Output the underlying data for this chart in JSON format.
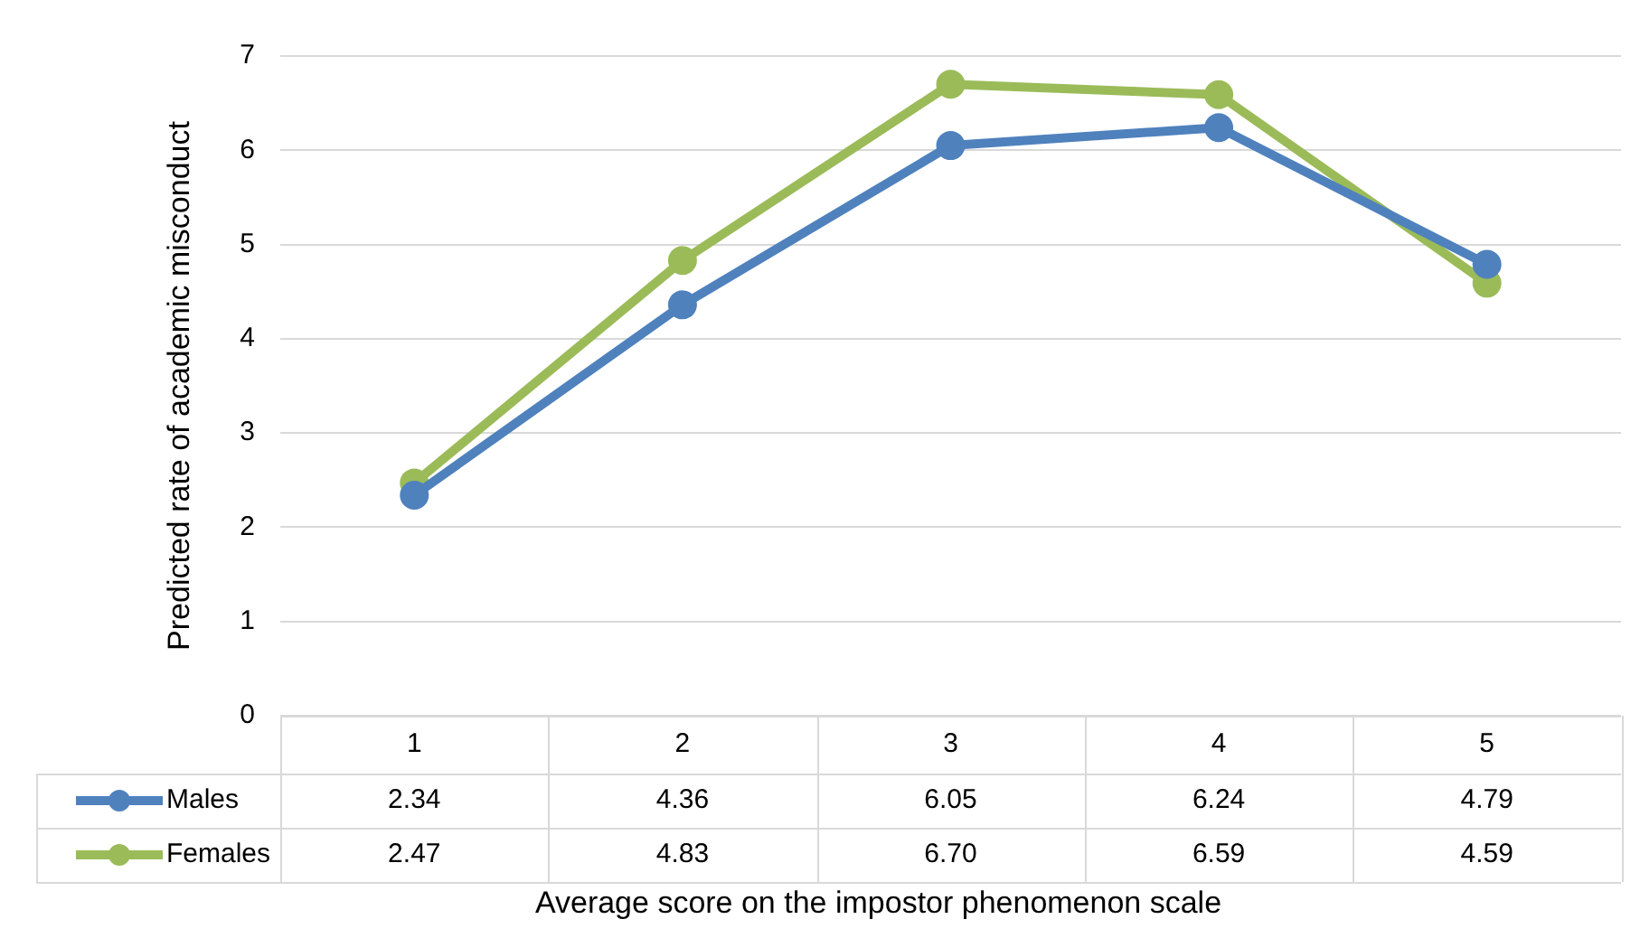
{
  "chart_data": {
    "type": "line",
    "xlabel": "Average score on the impostor phenomenon scale",
    "ylabel": "Predicted rate of academic misconduct",
    "categories": [
      "1",
      "2",
      "3",
      "4",
      "5"
    ],
    "series": [
      {
        "name": "Males",
        "color": "#4f81bd",
        "values": [
          2.34,
          4.36,
          6.05,
          6.24,
          4.79
        ],
        "value_labels": [
          "2.34",
          "4.36",
          "6.05",
          "6.24",
          "4.79"
        ]
      },
      {
        "name": "Females",
        "color": "#9bbb59",
        "values": [
          2.47,
          4.83,
          6.7,
          6.59,
          4.59
        ],
        "value_labels": [
          "2.47",
          "4.83",
          "6.70",
          "6.59",
          "4.59"
        ]
      }
    ],
    "ylim": [
      0,
      7
    ],
    "yticks": [
      0,
      1,
      2,
      3,
      4,
      5,
      6,
      7
    ],
    "grid": "y",
    "legend": "bottom",
    "marker": "circle",
    "line_style": "solid"
  }
}
